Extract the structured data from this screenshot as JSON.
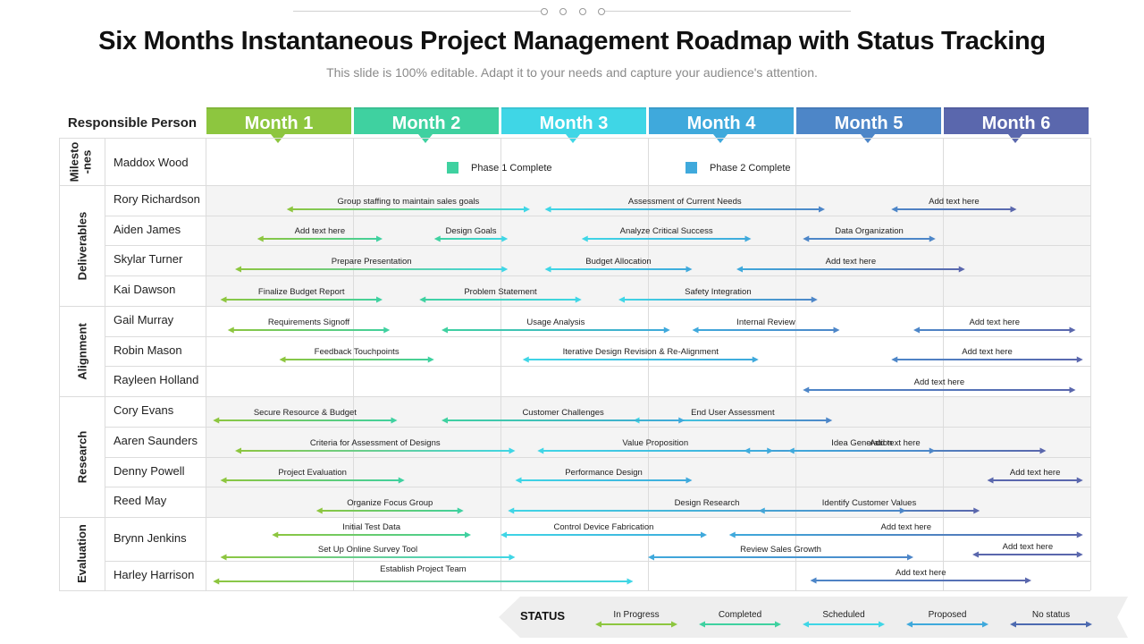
{
  "title": "Six Months Instantaneous Project Management Roadmap with Status Tracking",
  "subtitle": "This slide is 100% editable. Adapt it to your needs and capture your audience's attention.",
  "responsible_header": "Responsible Person",
  "months": [
    {
      "label": "Month 1",
      "color": "#8dc63f"
    },
    {
      "label": "Month 2",
      "color": "#3fd1a0"
    },
    {
      "label": "Month 3",
      "color": "#3fd6e6"
    },
    {
      "label": "Month 4",
      "color": "#3fa9dc"
    },
    {
      "label": "Month 5",
      "color": "#4d86c8"
    },
    {
      "label": "Month 6",
      "color": "#5a67ad"
    }
  ],
  "sections": [
    {
      "label": "Milesto\n-nes"
    },
    {
      "label": "Deliverables"
    },
    {
      "label": "Alignment"
    },
    {
      "label": "Research"
    },
    {
      "label": "Evaluation"
    }
  ],
  "milestones": {
    "person": "Maddox Wood",
    "legend": [
      {
        "label": "Phase 1 Complete",
        "color": "#3fd1a0"
      },
      {
        "label": "Phase 2 Complete",
        "color": "#3fa9dc"
      }
    ]
  },
  "people": [
    "Rory Richardson",
    "Aiden James",
    "Skylar Turner",
    "Kai Dawson",
    "Gail Murray",
    "Robin Mason",
    "Rayleen Holland",
    "Cory Evans",
    "Aaren Saunders",
    "Denny Powell",
    "Reed May",
    "Brynn Jenkins",
    "Harley Harrison"
  ],
  "tasks": [
    {
      "label": "Group  staffing to maintain sales goals",
      "start": 0.55,
      "end": 2.2
    },
    {
      "label": "Assessment of Current Needs",
      "start": 2.3,
      "end": 4.2
    },
    {
      "label": "Add text here",
      "start": 4.65,
      "end": 5.5
    },
    {
      "label": "Add text here",
      "start": 0.35,
      "end": 1.2
    },
    {
      "label": "Design Goals",
      "start": 1.55,
      "end": 2.05
    },
    {
      "label": "Analyze Critical Success",
      "start": 2.55,
      "end": 3.7
    },
    {
      "label": "Data Organization",
      "start": 4.05,
      "end": 4.95
    },
    {
      "label": "Prepare Presentation",
      "start": 0.2,
      "end": 2.05
    },
    {
      "label": "Budget Allocation",
      "start": 2.3,
      "end": 3.3
    },
    {
      "label": "Add text here",
      "start": 3.6,
      "end": 5.15
    },
    {
      "label": "Finalize Budget Report",
      "start": 0.1,
      "end": 1.2
    },
    {
      "label": "Problem Statement",
      "start": 1.45,
      "end": 2.55
    },
    {
      "label": "Safety Integration",
      "start": 2.8,
      "end": 4.15
    },
    {
      "label": "Add text here",
      "start": 4.8,
      "end": 5.9
    },
    {
      "label": "Requirements Signoff",
      "start": 0.15,
      "end": 1.25
    },
    {
      "label": "Usage Analysis",
      "start": 1.6,
      "end": 3.15
    },
    {
      "label": "Internal Review",
      "start": 3.3,
      "end": 4.3
    },
    {
      "label": "Add text here",
      "start": 4.65,
      "end": 5.95
    },
    {
      "label": "Feedback Touchpoints",
      "start": 0.5,
      "end": 1.55
    },
    {
      "label": "Iterative Design Revision & Re-Alignment",
      "start": 2.15,
      "end": 3.75
    },
    {
      "label": "Add text here",
      "start": 4.05,
      "end": 5.9
    },
    {
      "label": "End User Assessment",
      "start": 2.9,
      "end": 4.25
    },
    {
      "label": "Secure Resource & Budget",
      "start": 0.05,
      "end": 1.3
    },
    {
      "label": "Customer Challenges",
      "start": 1.6,
      "end": 3.25
    },
    {
      "label": "Add text here",
      "start": 3.65,
      "end": 5.7
    },
    {
      "label": "Criteria for Assessment of Designs",
      "start": 0.2,
      "end": 2.1
    },
    {
      "label": "Value Proposition",
      "start": 2.25,
      "end": 3.85
    },
    {
      "label": "Idea Generation",
      "start": 3.95,
      "end": 4.95
    },
    {
      "label": "Add text here",
      "start": 5.3,
      "end": 5.95
    },
    {
      "label": "Project Evaluation",
      "start": 0.1,
      "end": 1.35
    },
    {
      "label": "Performance Design",
      "start": 2.1,
      "end": 3.3
    },
    {
      "label": "Identify Customer Values",
      "start": 3.75,
      "end": 5.25
    },
    {
      "label": "Organize Focus Group",
      "start": 0.75,
      "end": 1.75
    },
    {
      "label": "Design Research",
      "start": 2.05,
      "end": 4.75
    },
    {
      "label": "Add text here",
      "start": 5.2,
      "end": 5.95
    },
    {
      "label": "Initial Test Data",
      "start": 0.45,
      "end": 1.8
    },
    {
      "label": "Control Device Fabrication",
      "start": 2.0,
      "end": 3.4
    },
    {
      "label": "Add text here",
      "start": 3.55,
      "end": 5.95
    },
    {
      "label": "Set Up Online  Survey Tool",
      "start": 0.1,
      "end": 2.1
    },
    {
      "label": "Review Sales Growth",
      "start": 3.0,
      "end": 4.8
    },
    {
      "label": "Establish Project Team",
      "start": 0.05,
      "end": 2.9
    },
    {
      "label": "Add text here",
      "start": 4.1,
      "end": 5.6
    }
  ],
  "status": {
    "label": "STATUS",
    "items": [
      {
        "label": "In Progress",
        "color": "#8dc63f"
      },
      {
        "label": "Completed",
        "color": "#3fd1a0"
      },
      {
        "label": "Scheduled",
        "color": "#3fd6e6"
      },
      {
        "label": "Proposed",
        "color": "#3fa9dc"
      },
      {
        "label": "No status",
        "color": "#4d6ab0"
      }
    ]
  }
}
